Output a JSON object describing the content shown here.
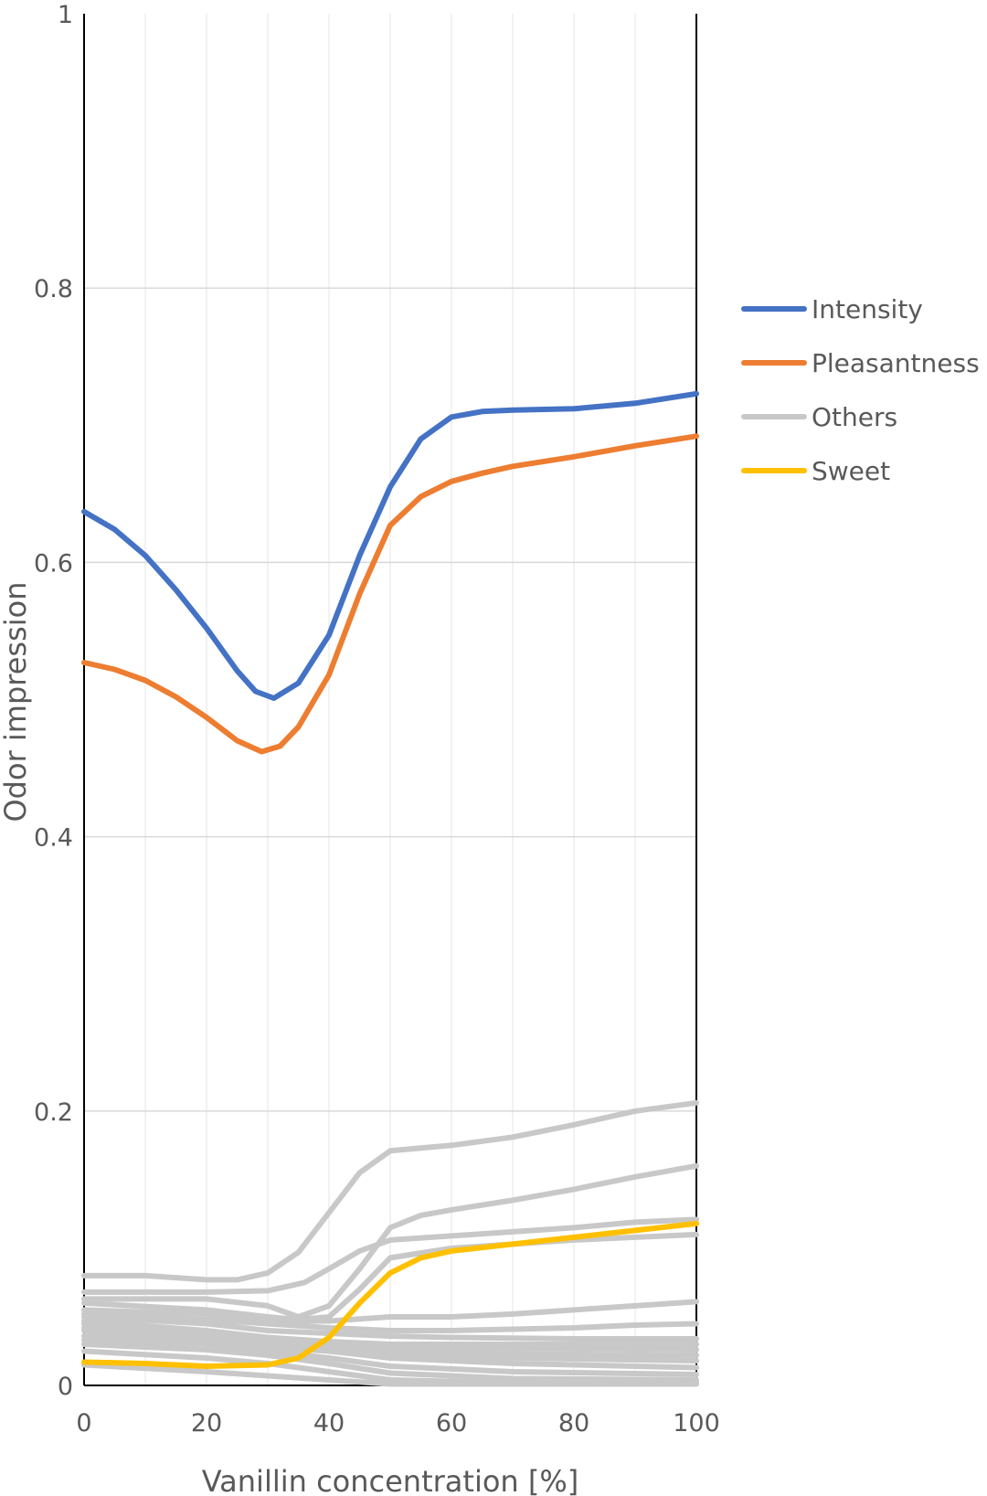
{
  "chart_data": {
    "type": "line",
    "title": "",
    "xlabel": "Vanillin concentration [%]",
    "ylabel": "Odor impression",
    "xlim": [
      0,
      100
    ],
    "ylim": [
      0,
      1
    ],
    "x_ticks": [
      "0",
      "20",
      "40",
      "60",
      "80",
      "100"
    ],
    "y_ticks": [
      "0",
      "0.2",
      "0.4",
      "0.6",
      "0.8",
      "1"
    ],
    "y_tick_values": [
      0,
      0.2,
      0.4,
      0.6,
      0.8,
      1
    ],
    "grid": true,
    "legend_position": "right",
    "series": [
      {
        "name": "Intensity",
        "color": "#4472C4",
        "points": [
          [
            0,
            0.637
          ],
          [
            5,
            0.624
          ],
          [
            10,
            0.605
          ],
          [
            15,
            0.58
          ],
          [
            20,
            0.552
          ],
          [
            25,
            0.521
          ],
          [
            28,
            0.506
          ],
          [
            31,
            0.501
          ],
          [
            35,
            0.512
          ],
          [
            40,
            0.547
          ],
          [
            45,
            0.605
          ],
          [
            50,
            0.655
          ],
          [
            55,
            0.69
          ],
          [
            60,
            0.706
          ],
          [
            65,
            0.71
          ],
          [
            70,
            0.711
          ],
          [
            80,
            0.712
          ],
          [
            90,
            0.716
          ],
          [
            100,
            0.723
          ]
        ]
      },
      {
        "name": "Pleasantness",
        "color": "#ED7D31",
        "points": [
          [
            0,
            0.527
          ],
          [
            5,
            0.522
          ],
          [
            10,
            0.514
          ],
          [
            15,
            0.502
          ],
          [
            20,
            0.487
          ],
          [
            25,
            0.47
          ],
          [
            29,
            0.462
          ],
          [
            32,
            0.466
          ],
          [
            35,
            0.48
          ],
          [
            40,
            0.518
          ],
          [
            45,
            0.577
          ],
          [
            50,
            0.627
          ],
          [
            55,
            0.648
          ],
          [
            60,
            0.659
          ],
          [
            65,
            0.665
          ],
          [
            70,
            0.67
          ],
          [
            80,
            0.677
          ],
          [
            90,
            0.685
          ],
          [
            100,
            0.692
          ]
        ]
      },
      {
        "name": "Others",
        "color": "#C8C8C8",
        "lines": [
          [
            [
              0,
              0.08
            ],
            [
              10,
              0.08
            ],
            [
              20,
              0.077
            ],
            [
              25,
              0.077
            ],
            [
              30,
              0.082
            ],
            [
              35,
              0.097
            ],
            [
              40,
              0.126
            ],
            [
              45,
              0.155
            ],
            [
              50,
              0.171
            ],
            [
              60,
              0.175
            ],
            [
              70,
              0.181
            ],
            [
              80,
              0.19
            ],
            [
              90,
              0.2
            ],
            [
              100,
              0.206
            ]
          ],
          [
            [
              0,
              0.068
            ],
            [
              20,
              0.068
            ],
            [
              30,
              0.069
            ],
            [
              36,
              0.075
            ],
            [
              40,
              0.085
            ],
            [
              45,
              0.098
            ],
            [
              50,
              0.106
            ],
            [
              60,
              0.109
            ],
            [
              70,
              0.112
            ],
            [
              80,
              0.115
            ],
            [
              90,
              0.119
            ],
            [
              100,
              0.121
            ]
          ],
          [
            [
              0,
              0.063
            ],
            [
              20,
              0.063
            ],
            [
              30,
              0.058
            ],
            [
              35,
              0.05
            ],
            [
              40,
              0.058
            ],
            [
              45,
              0.085
            ],
            [
              50,
              0.115
            ],
            [
              55,
              0.124
            ],
            [
              60,
              0.128
            ],
            [
              70,
              0.135
            ],
            [
              80,
              0.143
            ],
            [
              90,
              0.152
            ],
            [
              100,
              0.16
            ]
          ],
          [
            [
              0,
              0.06
            ],
            [
              20,
              0.055
            ],
            [
              30,
              0.05
            ],
            [
              35,
              0.048
            ],
            [
              40,
              0.05
            ],
            [
              45,
              0.07
            ],
            [
              50,
              0.093
            ],
            [
              60,
              0.1
            ],
            [
              70,
              0.103
            ],
            [
              80,
              0.106
            ],
            [
              90,
              0.108
            ],
            [
              100,
              0.11
            ]
          ],
          [
            [
              0,
              0.055
            ],
            [
              20,
              0.052
            ],
            [
              30,
              0.047
            ],
            [
              40,
              0.047
            ],
            [
              50,
              0.05
            ],
            [
              60,
              0.05
            ],
            [
              70,
              0.052
            ],
            [
              80,
              0.055
            ],
            [
              90,
              0.058
            ],
            [
              100,
              0.061
            ]
          ],
          [
            [
              0,
              0.052
            ],
            [
              20,
              0.048
            ],
            [
              30,
              0.045
            ],
            [
              40,
              0.042
            ],
            [
              50,
              0.04
            ],
            [
              60,
              0.04
            ],
            [
              70,
              0.041
            ],
            [
              80,
              0.042
            ],
            [
              90,
              0.044
            ],
            [
              100,
              0.045
            ]
          ],
          [
            [
              0,
              0.05
            ],
            [
              20,
              0.045
            ],
            [
              30,
              0.04
            ],
            [
              40,
              0.038
            ],
            [
              50,
              0.036
            ],
            [
              60,
              0.035
            ],
            [
              80,
              0.034
            ],
            [
              100,
              0.034
            ]
          ],
          [
            [
              0,
              0.047
            ],
            [
              20,
              0.04
            ],
            [
              30,
              0.035
            ],
            [
              40,
              0.032
            ],
            [
              50,
              0.03
            ],
            [
              60,
              0.03
            ],
            [
              80,
              0.03
            ],
            [
              100,
              0.03
            ]
          ],
          [
            [
              0,
              0.045
            ],
            [
              20,
              0.038
            ],
            [
              30,
              0.034
            ],
            [
              40,
              0.03
            ],
            [
              50,
              0.028
            ],
            [
              70,
              0.027
            ],
            [
              100,
              0.026
            ]
          ],
          [
            [
              0,
              0.042
            ],
            [
              20,
              0.036
            ],
            [
              30,
              0.03
            ],
            [
              40,
              0.027
            ],
            [
              50,
              0.025
            ],
            [
              70,
              0.023
            ],
            [
              100,
              0.022
            ]
          ],
          [
            [
              0,
              0.04
            ],
            [
              20,
              0.034
            ],
            [
              30,
              0.03
            ],
            [
              40,
              0.028
            ],
            [
              50,
              0.022
            ],
            [
              70,
              0.02
            ],
            [
              100,
              0.018
            ]
          ],
          [
            [
              0,
              0.036
            ],
            [
              20,
              0.032
            ],
            [
              30,
              0.028
            ],
            [
              40,
              0.025
            ],
            [
              50,
              0.02
            ],
            [
              70,
              0.016
            ],
            [
              100,
              0.013
            ]
          ],
          [
            [
              0,
              0.033
            ],
            [
              20,
              0.03
            ],
            [
              30,
              0.025
            ],
            [
              40,
              0.02
            ],
            [
              50,
              0.014
            ],
            [
              70,
              0.01
            ],
            [
              100,
              0.008
            ]
          ],
          [
            [
              0,
              0.03
            ],
            [
              20,
              0.026
            ],
            [
              30,
              0.022
            ],
            [
              40,
              0.016
            ],
            [
              50,
              0.009
            ],
            [
              70,
              0.005
            ],
            [
              100,
              0.004
            ]
          ],
          [
            [
              0,
              0.025
            ],
            [
              20,
              0.02
            ],
            [
              30,
              0.016
            ],
            [
              40,
              0.01
            ],
            [
              50,
              0.004
            ],
            [
              70,
              0.002
            ],
            [
              100,
              0.002
            ]
          ],
          [
            [
              0,
              0.015
            ],
            [
              20,
              0.01
            ],
            [
              30,
              0.007
            ],
            [
              40,
              0.004
            ],
            [
              50,
              0.001
            ],
            [
              100,
              0.001
            ]
          ]
        ]
      },
      {
        "name": "Sweet",
        "color": "#FFC000",
        "points": [
          [
            0,
            0.017
          ],
          [
            10,
            0.016
          ],
          [
            20,
            0.014
          ],
          [
            30,
            0.015
          ],
          [
            35,
            0.02
          ],
          [
            40,
            0.035
          ],
          [
            45,
            0.06
          ],
          [
            50,
            0.082
          ],
          [
            55,
            0.093
          ],
          [
            60,
            0.098
          ],
          [
            70,
            0.103
          ],
          [
            80,
            0.108
          ],
          [
            90,
            0.113
          ],
          [
            100,
            0.118
          ]
        ]
      }
    ]
  }
}
